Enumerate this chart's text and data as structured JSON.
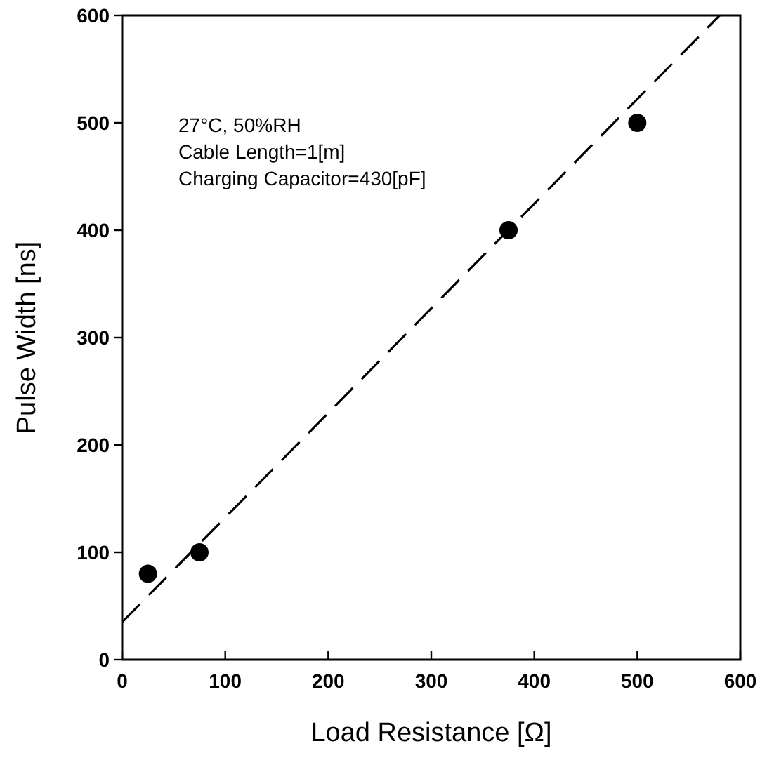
{
  "chart_data": {
    "type": "scatter",
    "xlabel": "Load Resistance [Ω]",
    "ylabel": "Pulse Width [ns]",
    "annotations": [
      "27°C, 50%RH",
      "Cable Length=1[m]",
      "Charging Capacitor=430[pF]"
    ],
    "xlim": [
      0,
      600
    ],
    "ylim": [
      0,
      600
    ],
    "xticks": [
      0,
      100,
      200,
      300,
      400,
      500,
      600
    ],
    "yticks": [
      0,
      100,
      200,
      300,
      400,
      500,
      600
    ],
    "grid": false,
    "series": [
      {
        "color": "#000000",
        "marker": "circle",
        "x": [
          25,
          75,
          375,
          500
        ],
        "values": [
          80,
          100,
          400,
          500
        ]
      },
      {
        "type": "line",
        "color": "#000000",
        "line_style": "dashed",
        "marker": "none",
        "x": [
          0,
          580
        ],
        "values": [
          35,
          600
        ]
      }
    ]
  }
}
